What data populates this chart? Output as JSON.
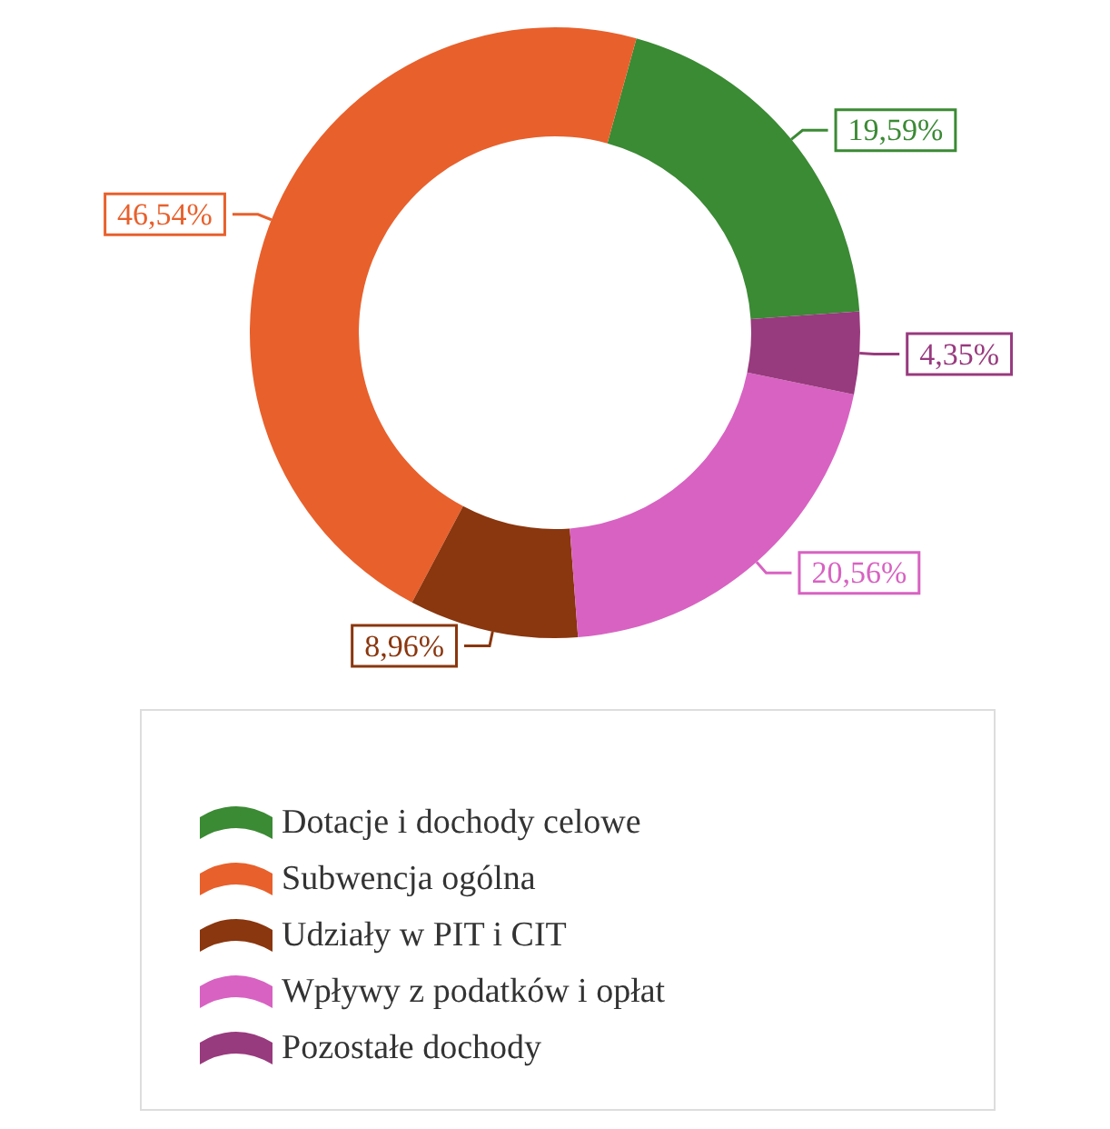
{
  "chart_data": {
    "type": "donut",
    "categories": [
      "Dotacje i dochody celowe",
      "Subwencja ogólna",
      "Udziały w PIT i CIT",
      "Wpływy z podatków i opłat",
      "Pozostałe dochody"
    ],
    "values": [
      19.59,
      46.54,
      8.96,
      20.56,
      4.35
    ],
    "value_labels": [
      "19,59%",
      "46,54%",
      "8,96%",
      "20,56%",
      "4,35%"
    ],
    "colors": [
      "#3b8a34",
      "#e8602c",
      "#8a360e",
      "#d862c2",
      "#983a7e"
    ],
    "legend": "bottom"
  }
}
